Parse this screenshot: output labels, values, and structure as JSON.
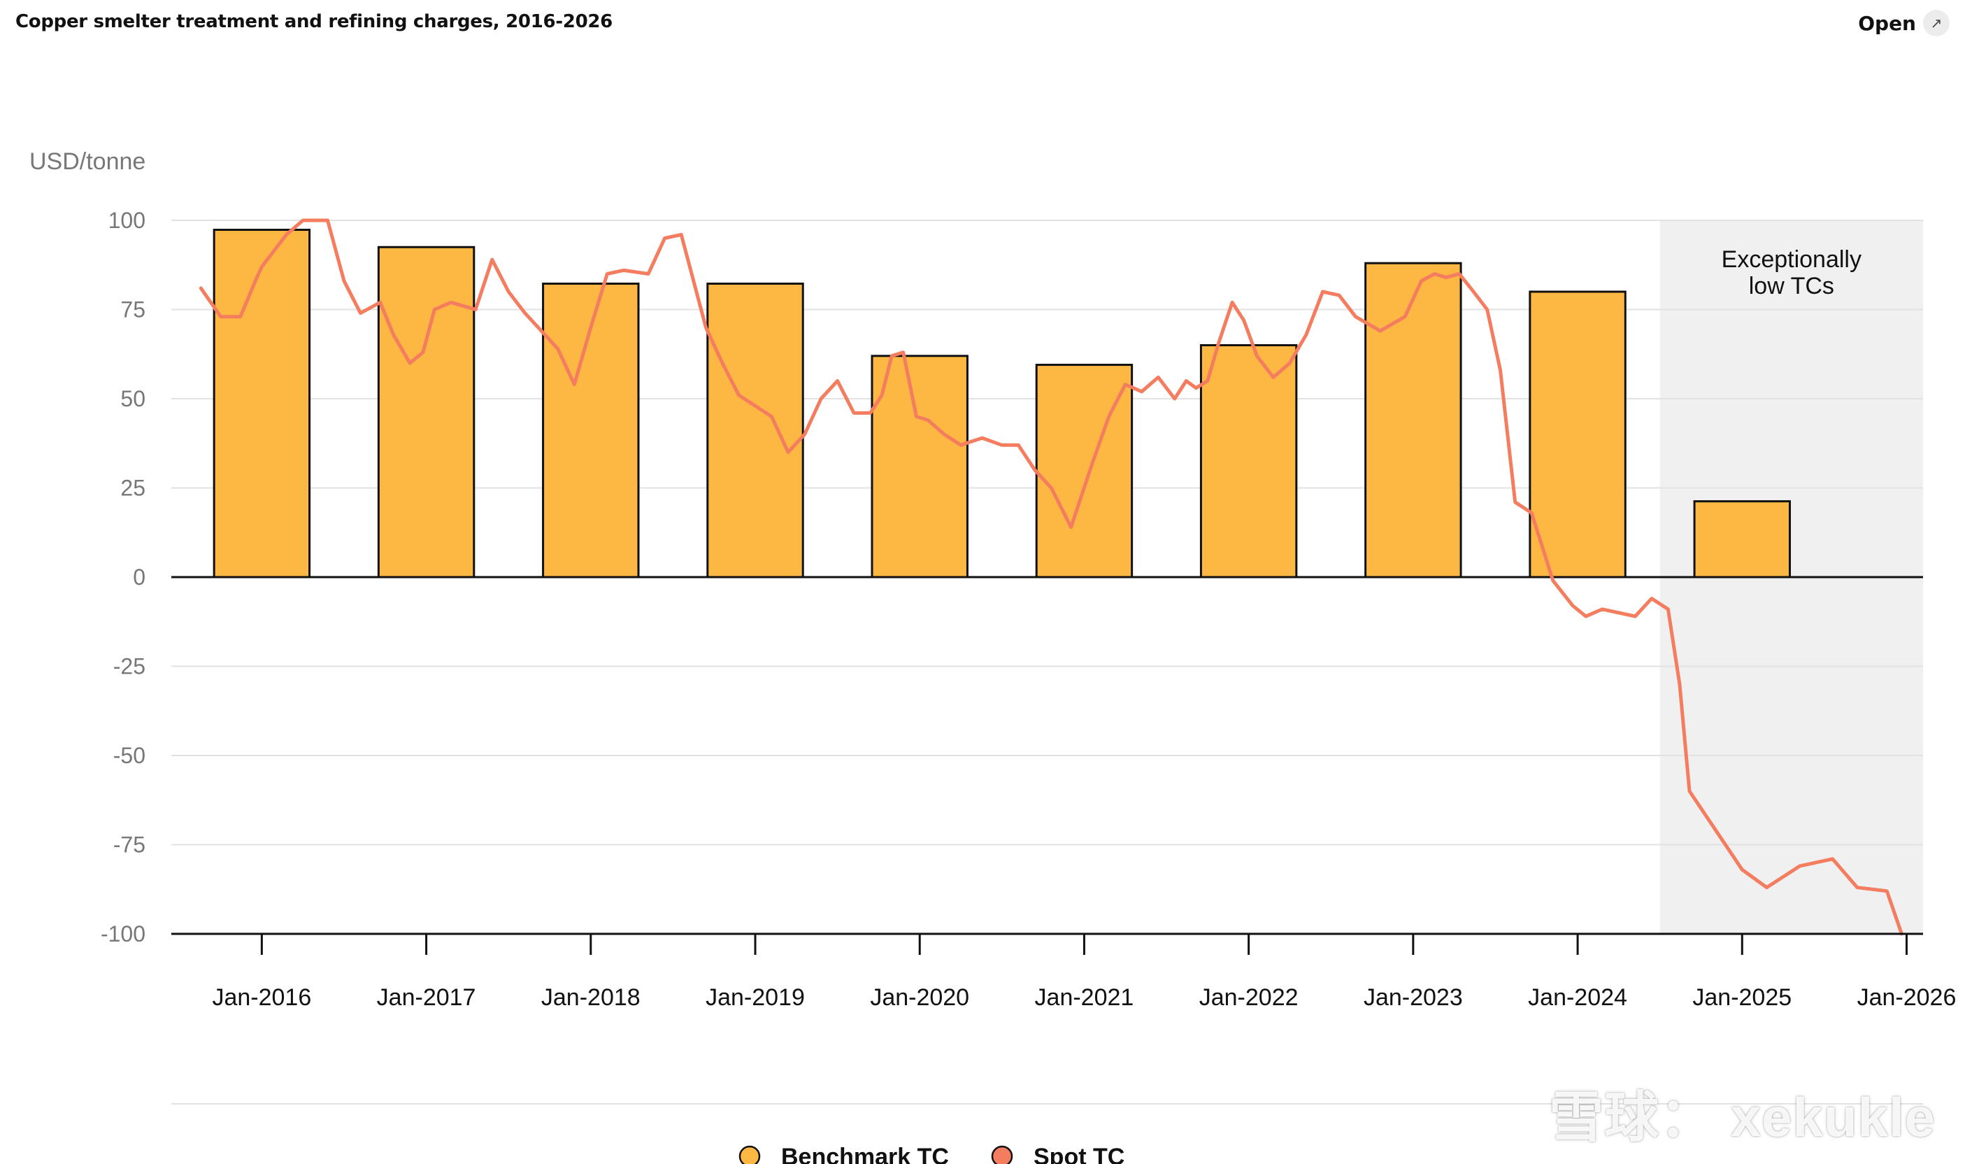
{
  "header": {
    "title": "Copper smelter treatment and refining charges, 2016-2026",
    "open_label": "Open",
    "open_icon": "expand-arrow-icon"
  },
  "chart_data": {
    "type": "bar",
    "ylabel": "USD/tonne",
    "ylim": [
      -100,
      100
    ],
    "yticks": [
      100,
      75,
      50,
      25,
      0,
      -25,
      -50,
      -75,
      -100
    ],
    "ytick_labels": [
      "100",
      "75",
      "50",
      "25",
      "0",
      "-25",
      "-50",
      "-75",
      "-100"
    ],
    "categories": [
      "Jan-2016",
      "Jan-2017",
      "Jan-2018",
      "Jan-2019",
      "Jan-2020",
      "Jan-2021",
      "Jan-2022",
      "Jan-2023",
      "Jan-2024",
      "Jan-2025",
      "Jan-2026"
    ],
    "grid": true,
    "series": [
      {
        "name": "Benchmark TC",
        "type": "bar",
        "color": "#fdb844",
        "x": [
          2016.0,
          2017.0,
          2018.0,
          2019.0,
          2020.0,
          2021.0,
          2022.0,
          2023.0,
          2024.0,
          2025.0
        ],
        "values": [
          97.35,
          92.5,
          82.25,
          82.25,
          62.0,
          59.5,
          65.0,
          88.0,
          80.0,
          21.25
        ]
      },
      {
        "name": "Spot TC",
        "type": "line",
        "color": "#f47c5f",
        "x": [
          2015.63,
          2015.75,
          2015.87,
          2015.97,
          2016.0,
          2016.15,
          2016.25,
          2016.4,
          2016.5,
          2016.6,
          2016.72,
          2016.8,
          2016.9,
          2016.98,
          2017.05,
          2017.15,
          2017.3,
          2017.4,
          2017.5,
          2017.6,
          2017.7,
          2017.8,
          2017.9,
          2018.0,
          2018.1,
          2018.2,
          2018.35,
          2018.45,
          2018.55,
          2018.7,
          2018.8,
          2018.9,
          2019.0,
          2019.1,
          2019.2,
          2019.3,
          2019.4,
          2019.5,
          2019.6,
          2019.7,
          2019.77,
          2019.83,
          2019.9,
          2019.98,
          2020.05,
          2020.15,
          2020.25,
          2020.38,
          2020.5,
          2020.6,
          2020.7,
          2020.8,
          2020.92,
          2021.05,
          2021.15,
          2021.25,
          2021.35,
          2021.45,
          2021.55,
          2021.62,
          2021.68,
          2021.75,
          2021.82,
          2021.9,
          2021.97,
          2022.05,
          2022.15,
          2022.25,
          2022.35,
          2022.45,
          2022.55,
          2022.65,
          2022.8,
          2022.95,
          2023.05,
          2023.13,
          2023.2,
          2023.28,
          2023.35,
          2023.45,
          2023.53,
          2023.62,
          2023.72,
          2023.85,
          2023.97,
          2024.05,
          2024.15,
          2024.25,
          2024.35,
          2024.45,
          2024.55,
          2024.62,
          2024.68,
          2025.0,
          2025.15,
          2025.35,
          2025.55,
          2025.7,
          2025.88,
          2025.97
        ],
        "values": [
          81,
          73,
          73,
          84,
          87,
          96,
          100,
          100,
          83,
          74,
          77,
          68,
          60,
          63,
          75,
          77,
          75,
          89,
          80,
          74,
          69,
          64,
          54,
          70,
          85,
          86,
          85,
          95,
          96,
          70,
          60,
          51,
          48,
          45,
          35,
          40,
          50,
          55,
          46,
          46,
          51,
          62,
          63,
          45,
          44,
          40,
          37,
          39,
          37,
          37,
          30,
          25,
          14,
          32,
          45,
          54,
          52,
          56,
          50,
          55,
          53,
          55,
          66,
          77,
          72,
          62,
          56,
          60,
          68,
          80,
          79,
          73,
          69,
          73,
          83,
          85,
          84,
          85,
          81,
          75,
          58,
          21,
          18,
          -1,
          -8,
          -11,
          -9,
          -10,
          -11,
          -6,
          -9,
          -30,
          -60,
          -82,
          -87,
          -81,
          -79,
          -87,
          -88,
          -100
        ]
      }
    ],
    "annotation": {
      "text_line1": "Exceptionally",
      "text_line2": "low TCs",
      "x_from": 2024.5,
      "x_to": 2026.1
    },
    "legend": {
      "placement": "bottom",
      "items": [
        "Benchmark TC",
        "Spot TC"
      ]
    }
  },
  "watermark": {
    "text": "雪球： xekukle"
  }
}
